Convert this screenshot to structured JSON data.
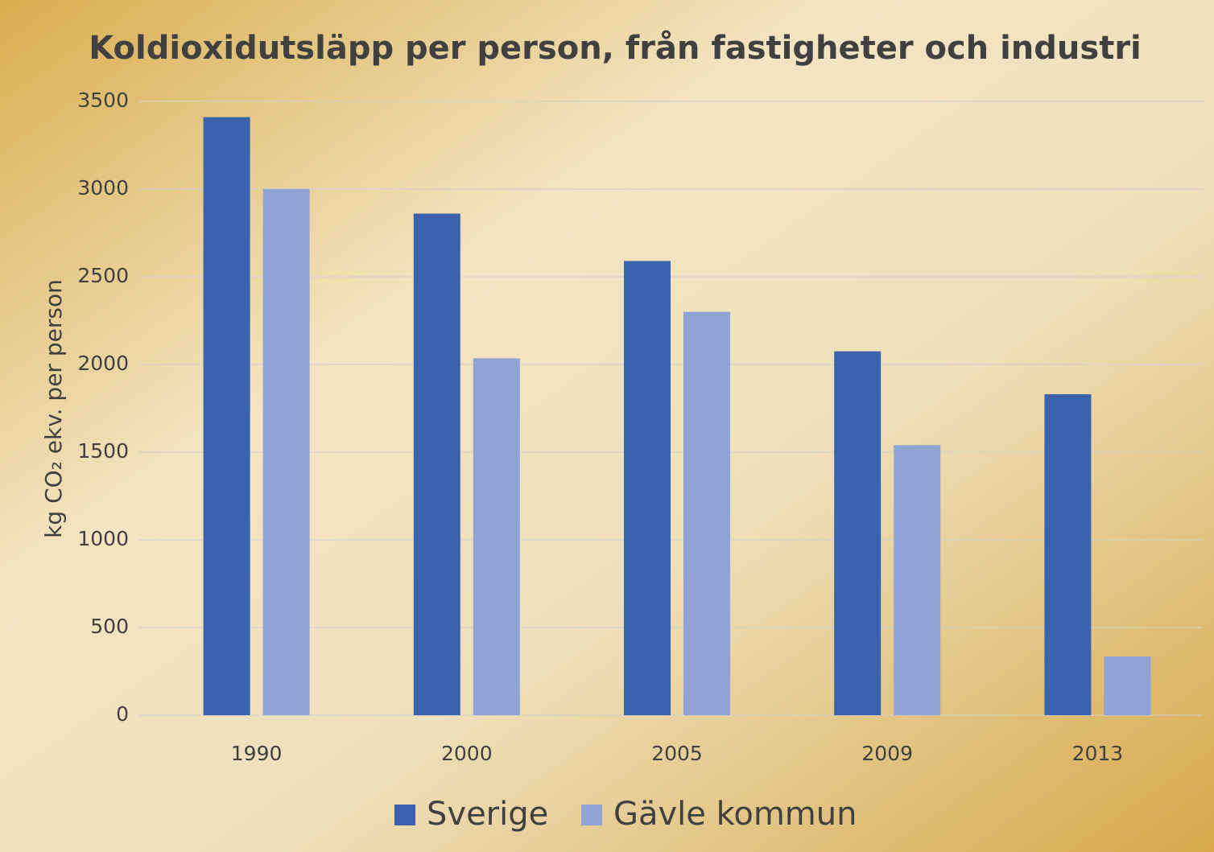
{
  "chart_data": {
    "type": "bar",
    "title": "Koldioxidutsläpp per person, från fastigheter och industri",
    "y_label": "kg CO₂ ekv. per person",
    "categories": [
      "1990",
      "2000",
      "2005",
      "2009",
      "2013"
    ],
    "series": [
      {
        "name": "Sverige",
        "color": "#3a62ad",
        "values": [
          3410,
          2860,
          2590,
          2075,
          1830
        ]
      },
      {
        "name": "Gävle kommun",
        "color": "#8fa4d4",
        "values": [
          3000,
          2035,
          2300,
          1540,
          335
        ]
      }
    ],
    "ylim": [
      0,
      3500
    ],
    "yticks": [
      0,
      500,
      1000,
      1500,
      2000,
      2500,
      3000,
      3500
    ],
    "grid": true,
    "legend": "bottom"
  }
}
